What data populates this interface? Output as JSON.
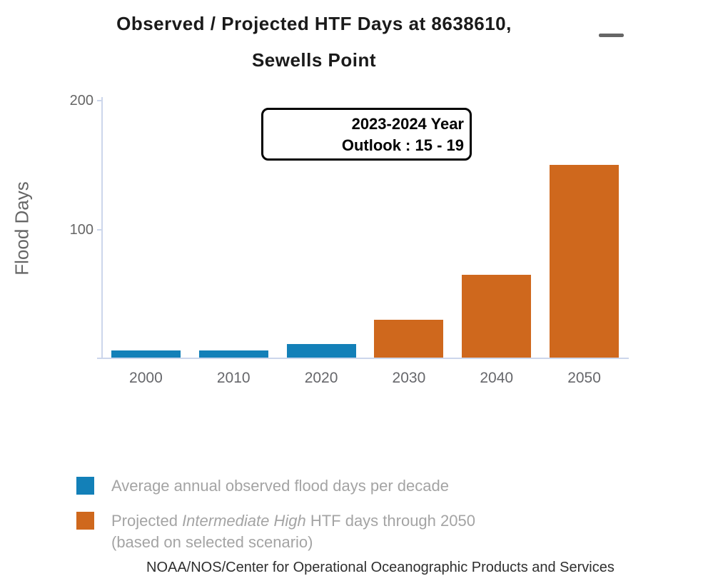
{
  "title": {
    "line1": "Observed / Projected HTF Days at 8638610,",
    "line2": "Sewells Point"
  },
  "menu": {
    "icon": "hamburger-icon"
  },
  "annotation": {
    "line1": "2023-2024 Year",
    "line2": "Outlook : 15 - 19"
  },
  "y_axis": {
    "title": "Flood Days",
    "ticks": [
      "200",
      "100"
    ]
  },
  "chart_data": {
    "type": "bar",
    "title": "Observed / Projected HTF Days at 8638610, Sewells Point",
    "ylabel": "Flood Days",
    "ylim": [
      0,
      200
    ],
    "grid": false,
    "categories": [
      "2000",
      "2010",
      "2020",
      "2030",
      "2040",
      "2050"
    ],
    "series": [
      {
        "name": "Average annual observed flood days per decade",
        "color": "#1380b8",
        "values": [
          6,
          6,
          11,
          null,
          null,
          null
        ]
      },
      {
        "name": "Projected Intermediate High HTF days through 2050 (based on selected scenario)",
        "color": "#cf681d",
        "values": [
          null,
          null,
          null,
          30,
          65,
          150
        ]
      }
    ],
    "annotation": "2023-2024 Year Outlook : 15 - 19",
    "legend_position": "bottom-left"
  },
  "legend": {
    "item1": {
      "label": "Average annual observed flood days per decade"
    },
    "item2": {
      "prefix": "Projected ",
      "italic": "Intermediate High",
      "suffix": " HTF days through 2050",
      "line2": "(based on selected scenario)"
    }
  },
  "footer": "NOAA/NOS/Center for Operational Oceanographic Products and Services"
}
